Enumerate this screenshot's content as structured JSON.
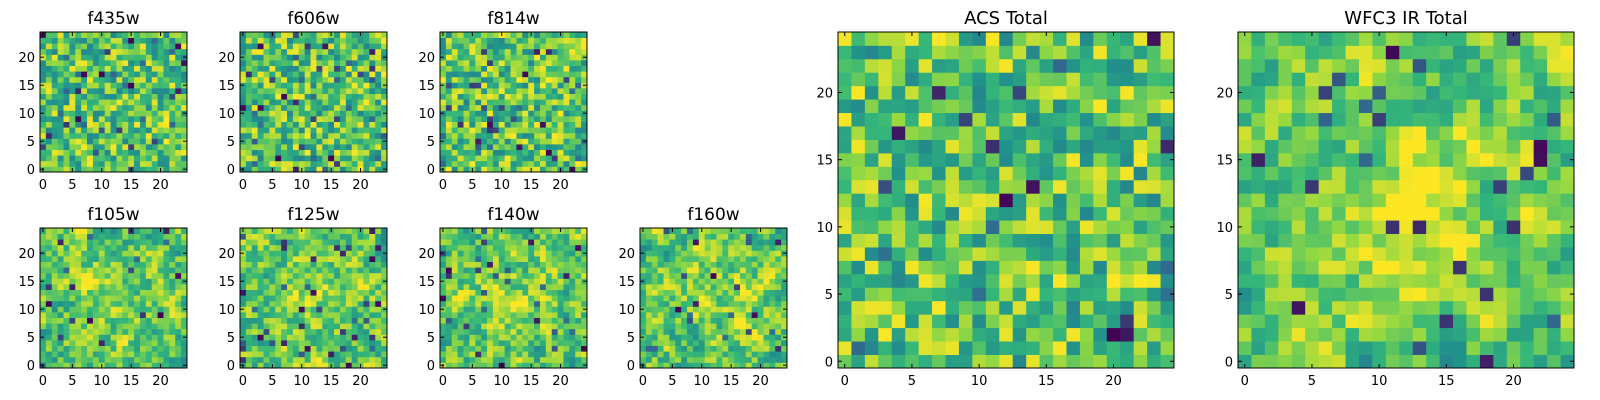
{
  "figure": {
    "colormap": [
      "#440154",
      "#31688e",
      "#21918c",
      "#35b779",
      "#90d743",
      "#fde725"
    ]
  },
  "chart_data": [
    {
      "type": "heatmap",
      "title": "f435w",
      "grid_size": 25,
      "xticks": [
        "0",
        "5",
        "10",
        "15",
        "20"
      ],
      "yticks": [
        "0",
        "5",
        "10",
        "15",
        "20"
      ],
      "seed": 11,
      "smooth": 0.0,
      "bias": 0.0,
      "spots": 0.06
    },
    {
      "type": "heatmap",
      "title": "f606w",
      "grid_size": 25,
      "xticks": [
        "0",
        "5",
        "10",
        "15",
        "20"
      ],
      "yticks": [
        "0",
        "5",
        "10",
        "15",
        "20"
      ],
      "seed": 23,
      "smooth": 0.0,
      "bias": 0.0,
      "spots": 0.06
    },
    {
      "type": "heatmap",
      "title": "f814w",
      "grid_size": 25,
      "xticks": [
        "0",
        "5",
        "10",
        "15",
        "20"
      ],
      "yticks": [
        "0",
        "5",
        "10",
        "15",
        "20"
      ],
      "seed": 37,
      "smooth": 0.0,
      "bias": 0.0,
      "spots": 0.05
    },
    {
      "type": "heatmap",
      "title": "f105w",
      "grid_size": 25,
      "xticks": [
        "0",
        "5",
        "10",
        "15",
        "20"
      ],
      "yticks": [
        "0",
        "5",
        "10",
        "15",
        "20"
      ],
      "seed": 41,
      "smooth": 0.5,
      "bias": 0.12,
      "spots": 0.04
    },
    {
      "type": "heatmap",
      "title": "f125w",
      "grid_size": 25,
      "xticks": [
        "0",
        "5",
        "10",
        "15",
        "20"
      ],
      "yticks": [
        "0",
        "5",
        "10",
        "15",
        "20"
      ],
      "seed": 53,
      "smooth": 0.5,
      "bias": 0.1,
      "spots": 0.05
    },
    {
      "type": "heatmap",
      "title": "f140w",
      "grid_size": 25,
      "xticks": [
        "0",
        "5",
        "10",
        "15",
        "20"
      ],
      "yticks": [
        "0",
        "5",
        "10",
        "15",
        "20"
      ],
      "seed": 67,
      "smooth": 0.5,
      "bias": 0.12,
      "spots": 0.04
    },
    {
      "type": "heatmap",
      "title": "f160w",
      "grid_size": 25,
      "xticks": [
        "0",
        "5",
        "10",
        "15",
        "20"
      ],
      "yticks": [
        "0",
        "5",
        "10",
        "15",
        "20"
      ],
      "seed": 79,
      "smooth": 0.55,
      "bias": 0.15,
      "spots": 0.03
    },
    {
      "type": "heatmap",
      "title": "ACS Total",
      "grid_size": 25,
      "xticks": [
        "0",
        "5",
        "10",
        "15",
        "20"
      ],
      "yticks": [
        "0",
        "5",
        "10",
        "15",
        "20"
      ],
      "seed": 97,
      "smooth": 0.0,
      "bias": 0.0,
      "spots": 0.03
    },
    {
      "type": "heatmap",
      "title": "WFC3 IR Total",
      "grid_size": 25,
      "xticks": [
        "0",
        "5",
        "10",
        "15",
        "20"
      ],
      "yticks": [
        "0",
        "5",
        "10",
        "15",
        "20"
      ],
      "seed": 101,
      "smooth": 0.6,
      "bias": 0.25,
      "spots": 0.05
    }
  ]
}
